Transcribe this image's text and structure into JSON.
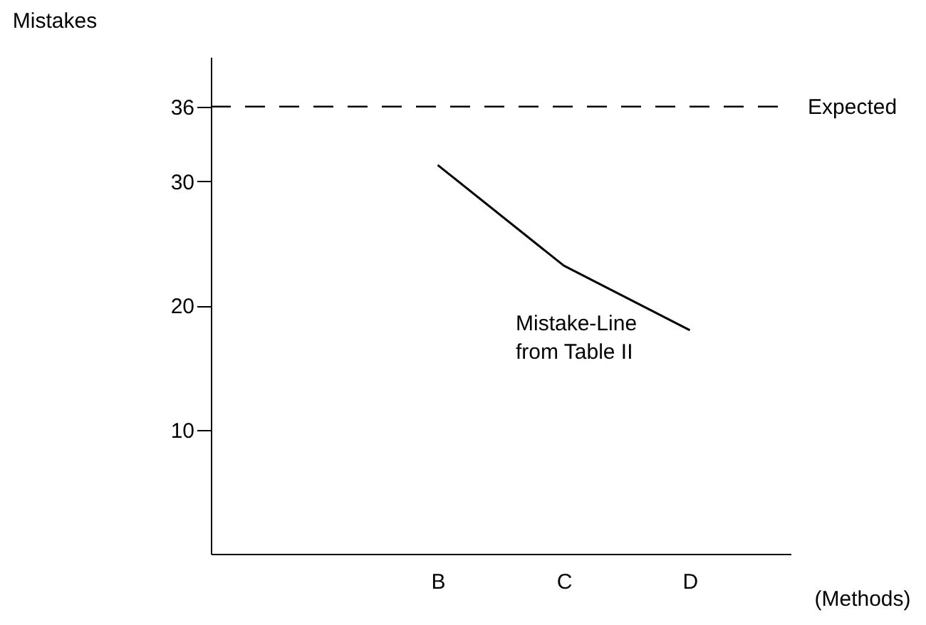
{
  "chart_data": {
    "type": "line",
    "categories": [
      null,
      "B",
      "C",
      "D"
    ],
    "xlabel": "(Methods)",
    "ylabel": "Mistakes",
    "series": [
      {
        "name": "Mistake-Line from Table II",
        "color": "#000000",
        "values": [
          null,
          31.3,
          23.2,
          18.0
        ]
      }
    ],
    "ylim": [
      0,
      40
    ],
    "yticks": [
      10,
      20,
      30,
      36
    ],
    "grid": false,
    "legend": false,
    "marker": "none",
    "line_style": "solid",
    "ref_lines": [
      {
        "axis": "y",
        "value": 36,
        "label": "Expected",
        "color": "#000000",
        "line_style": "dashed"
      }
    ]
  }
}
